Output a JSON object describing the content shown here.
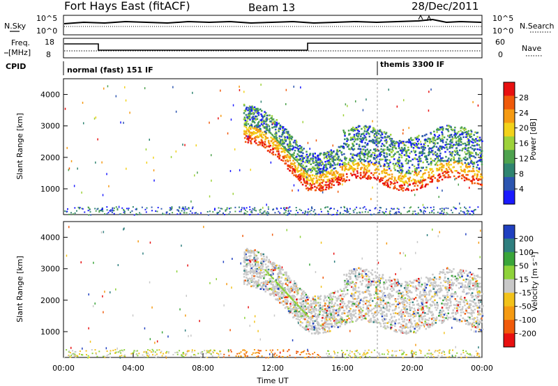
{
  "header": {
    "station": "Fort Hays East (fitACF)",
    "beam": "Beam 13",
    "date": "28/Dec/2011"
  },
  "top_panels": {
    "nsky_label": "N.Sky",
    "nsky_ticks": [
      "10^5",
      "10^0"
    ],
    "nsearch_label": "N.Search",
    "nsearch_ticks": [
      "10^5",
      "10^0"
    ],
    "freq_label_1": "Freq.",
    "freq_label_2": "[MHz]",
    "freq_ticks": [
      "18",
      "8"
    ],
    "nave_label": "Nave",
    "nave_ticks": [
      "60",
      "0"
    ],
    "cpid_label": "CPID",
    "cpid_modes": [
      "normal (fast) 151 IF",
      "themis 3300 IF"
    ]
  },
  "chart_data": [
    {
      "type": "heatmap",
      "title": "",
      "ylabel": "Slant Range [km]",
      "xlabel": "",
      "x_range_hours": [
        0,
        24
      ],
      "ylim": [
        180,
        4500
      ],
      "y_ticks": [
        1000,
        2000,
        3000,
        4000
      ],
      "colorbar": {
        "label": "Power [dB]",
        "ticks": [
          28,
          24,
          20,
          16,
          12,
          8,
          4
        ],
        "colors": [
          "#e81010",
          "#f05a0a",
          "#f59a12",
          "#f2d21a",
          "#9dd23a",
          "#4ea24e",
          "#2f8470",
          "#2c55b0",
          "#1a1aff"
        ]
      }
    },
    {
      "type": "heatmap",
      "title": "",
      "ylabel": "Slant Range [km]",
      "xlabel": "Time UT",
      "x_range_hours": [
        0,
        24
      ],
      "ylim": [
        180,
        4500
      ],
      "y_ticks": [
        1000,
        2000,
        3000,
        4000
      ],
      "x_ticks": [
        "00:00",
        "04:00",
        "08:00",
        "12:00",
        "16:00",
        "20:00",
        "00:00"
      ],
      "colorbar": {
        "label": "Velocity [m s⁻¹]",
        "ticks": [
          200,
          100,
          50,
          15,
          -15,
          -50,
          -100,
          -200
        ],
        "colors": [
          "#2040c0",
          "#2f7f7f",
          "#3aa53a",
          "#8ed23a",
          "#c8c8c8",
          "#f2c21a",
          "#f59a12",
          "#f05a0a",
          "#e81010"
        ]
      }
    }
  ]
}
